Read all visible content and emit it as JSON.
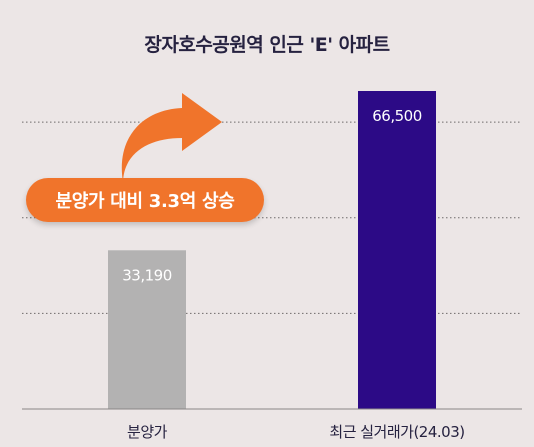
{
  "title": "장자호수공원역 인근 'E' 아파트",
  "callout": "분양가 대비 3.3억 상승",
  "colors": {
    "background": "#ece6e6",
    "bar_presale": "#b3b2b2",
    "bar_recent": "#2c0a86",
    "callout": "#f0742b",
    "text_dark": "#262240"
  },
  "chart_data": {
    "type": "bar",
    "title": "장자호수공원역 인근 'E' 아파트",
    "categories": [
      "분양가",
      "최근 실거래가(24.03)"
    ],
    "values": [
      33190,
      66500
    ],
    "value_labels": [
      "33,190",
      "66,500"
    ],
    "ylim": [
      0,
      70000
    ],
    "grid": true,
    "gridline_values": [
      20000,
      40000,
      60000
    ]
  }
}
